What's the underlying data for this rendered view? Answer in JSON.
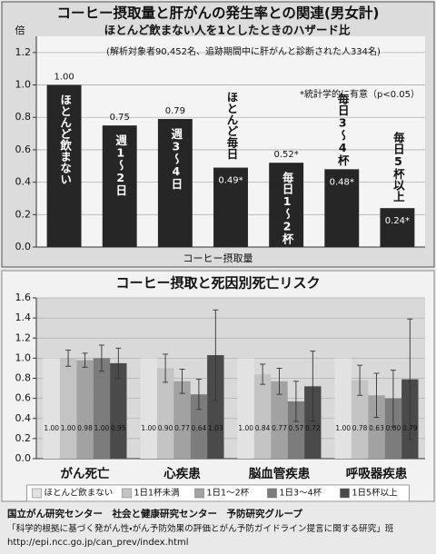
{
  "chart_data": [
    {
      "type": "bar",
      "title": "コーヒー摂取量と肝がんの発生率との関連(男女計)",
      "subtitle": "ほとんど飲まない人を1としたときのハザード比",
      "note": "(解析対象者90,452名、追跡期間中に肝がんと診断された人334名)",
      "annotation": "*統計学的に有意（p<0.05）",
      "y_label": "倍",
      "x_label": "コーヒー摂取量",
      "categories": [
        "ほとんど飲まない",
        "週1〜2日",
        "週3〜4日",
        "ほとんど毎日",
        "毎日1〜2杯",
        "毎日3〜4杯",
        "毎日5杯以上"
      ],
      "values": [
        1,
        0.75,
        0.79,
        0.49,
        0.52,
        0.48,
        0.24
      ],
      "value_labels": [
        "1.00",
        "0.75",
        "0.79",
        "0.49*",
        "0.52*",
        "0.48*",
        "0.24*"
      ],
      "color": "#262626",
      "ylim": [
        0,
        1.3
      ],
      "yticks": [
        {
          "value": 0,
          "label": "0.0"
        },
        0.2,
        0.4,
        0.6,
        0.8,
        {
          "value": 1,
          "label": "1.0"
        },
        1.2
      ],
      "grid": true
    },
    {
      "type": "bar",
      "title": "コーヒー摂取と死因別死亡リスク",
      "categories": [
        "がん死亡",
        "心疾患",
        "脳血管疾患",
        "呼吸器疾患"
      ],
      "series": [
        {
          "name": "ほとんど飲まない",
          "color": "#e2e2e2",
          "values": [
            1,
            1,
            1,
            1
          ],
          "value_labels": [
            "1.00",
            "1.00",
            "1.00",
            "1.00"
          ],
          "errors": [
            null,
            null,
            null,
            null
          ]
        },
        {
          "name": "1日1杯未満",
          "color": "#c4c4c4",
          "values": [
            1,
            0.9,
            0.84,
            0.78
          ],
          "value_labels": [
            "1.00",
            "0.90",
            "0.84",
            "0.78"
          ],
          "errors": [
            0.08,
            0.14,
            0.1,
            0.15
          ]
        },
        {
          "name": "1日1〜2杯",
          "color": "#a2a2a2",
          "values": [
            0.98,
            0.77,
            0.77,
            0.63
          ],
          "value_labels": [
            "0.98",
            "0.77",
            "0.77",
            "0.63"
          ],
          "errors": [
            0.07,
            0.12,
            0.13,
            0.22
          ]
        },
        {
          "name": "1日3〜4杯",
          "color": "#7c7c7c",
          "values": [
            1,
            0.64,
            0.57,
            0.6
          ],
          "value_labels": [
            "1.00",
            "0.64",
            "0.57",
            "0.60"
          ],
          "errors": [
            0.13,
            0.15,
            0.2,
            0.28
          ]
        },
        {
          "name": "1日5杯以上",
          "color": "#4a4a4a",
          "values": [
            0.95,
            1.03,
            0.72,
            0.79
          ],
          "value_labels": [
            "0.95",
            "1.03",
            "0.72",
            "0.79"
          ],
          "errors": [
            0.15,
            0.45,
            0.35,
            0.6
          ]
        }
      ],
      "ylim": [
        0,
        1.6
      ],
      "yticks": [
        {
          "value": 0,
          "label": "0.0"
        },
        0.2,
        0.4,
        0.6,
        0.8,
        {
          "value": 1,
          "label": "1.0"
        },
        1.2,
        1.4,
        1.6
      ],
      "grid": true,
      "legend": "bottom"
    }
  ],
  "footer": {
    "lines": [
      "国立がん研究センター　社会と健康研究センター　予防研究グループ",
      "「科学的根拠に基づく発がん性・がん予防効果の評価とがん予防ガイドライン提言に関する研究」班",
      "http://epi.ncc.go.jp/can_prev/index.html"
    ]
  }
}
